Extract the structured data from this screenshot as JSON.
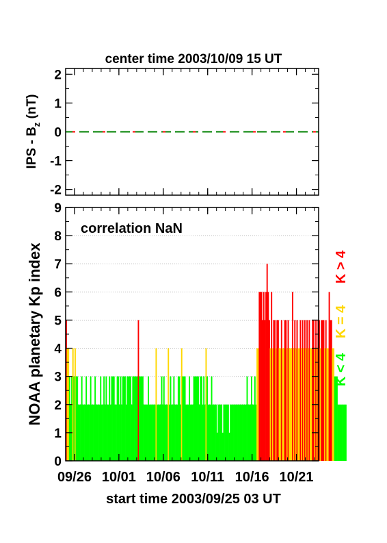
{
  "chart_data": [
    {
      "type": "line",
      "title": "center time 2003/10/09 15 UT",
      "ylabel": "IPS - B",
      "ylabel_sub": "z",
      "ylabel_unit": " (nT)",
      "ylim": [
        -2.2,
        2.2
      ],
      "y_ticks": [
        "2",
        "1",
        "0",
        "-1",
        "-2"
      ],
      "xlim_days": [
        0,
        28.5
      ],
      "series": [
        {
          "color": "#008000",
          "x": [
            0,
            28.5
          ],
          "y": [
            0,
            0
          ]
        },
        {
          "color": "#ff0000",
          "x": [
            0,
            28.5
          ],
          "y": [
            0,
            0
          ]
        }
      ]
    },
    {
      "type": "bar",
      "annotation": "correlation NaN",
      "ylabel": "NOAA planetary Kp index",
      "xlabel": "start time 2003/09/25 03 UT",
      "ylim": [
        0,
        9
      ],
      "y_ticks": [
        "0",
        "1",
        "2",
        "3",
        "4",
        "5",
        "6",
        "7",
        "8",
        "9"
      ],
      "x_tick_labels": [
        "09/26",
        "10/01",
        "10/06",
        "10/11",
        "10/16",
        "10/21"
      ],
      "legend": [
        {
          "label": "K < 4",
          "color": "#00ff00"
        },
        {
          "label": "K = 4",
          "color": "#ffd700"
        },
        {
          "label": "K > 4",
          "color": "#ff0000"
        }
      ],
      "colors": {
        "low": "#00ff00",
        "mid": "#ffd700",
        "high": "#ff0000"
      },
      "bar_width_hours": 3,
      "kp_values": [
        5,
        4,
        4,
        3,
        2,
        3,
        4,
        3,
        4,
        3,
        3,
        2,
        2,
        2,
        3,
        2,
        2,
        2,
        3,
        2,
        2,
        2,
        3,
        2,
        2,
        2,
        3,
        2,
        2,
        2,
        2,
        3,
        2,
        2,
        3,
        2,
        3,
        2,
        2,
        3,
        2,
        3,
        3,
        3,
        2,
        2,
        3,
        3,
        2,
        3,
        2,
        3,
        3,
        3,
        2,
        3,
        3,
        3,
        3,
        2,
        3,
        3,
        3,
        3,
        3,
        5,
        3,
        3,
        3,
        3,
        2,
        2,
        2,
        2,
        3,
        2,
        2,
        2,
        2,
        2,
        2,
        4,
        2,
        2,
        2,
        2,
        3,
        2,
        3,
        2,
        2,
        2,
        4,
        2,
        3,
        2,
        2,
        3,
        2,
        2,
        2,
        3,
        3,
        2,
        4,
        3,
        3,
        3,
        2,
        2,
        2,
        3,
        2,
        2,
        2,
        3,
        3,
        3,
        3,
        3,
        2,
        3,
        3,
        2,
        3,
        2,
        4,
        3,
        2,
        2,
        2,
        3,
        2,
        2,
        2,
        2,
        1,
        2,
        2,
        2,
        2,
        1,
        2,
        2,
        2,
        2,
        2,
        1,
        2,
        2,
        2,
        2,
        2,
        2,
        2,
        2,
        2,
        2,
        2,
        2,
        2,
        2,
        2,
        3,
        2,
        2,
        2,
        3,
        2,
        2,
        3,
        2,
        4,
        4,
        6,
        6,
        6,
        5,
        6,
        5,
        6,
        7,
        6,
        5,
        4,
        6,
        4,
        5,
        5,
        4,
        5,
        5,
        4,
        4,
        5,
        4,
        4,
        5,
        5,
        4,
        5,
        4,
        4,
        4,
        6,
        4,
        5,
        4,
        5,
        4,
        4,
        5,
        4,
        5,
        4,
        5,
        4,
        5,
        4,
        5,
        4,
        4,
        5,
        5,
        4,
        5,
        4,
        5,
        5,
        4,
        5,
        5,
        5,
        4,
        5,
        4,
        4,
        6,
        5,
        5,
        4,
        4,
        3,
        3,
        3,
        2,
        2,
        2,
        2,
        2,
        2,
        2,
        2
      ]
    }
  ]
}
